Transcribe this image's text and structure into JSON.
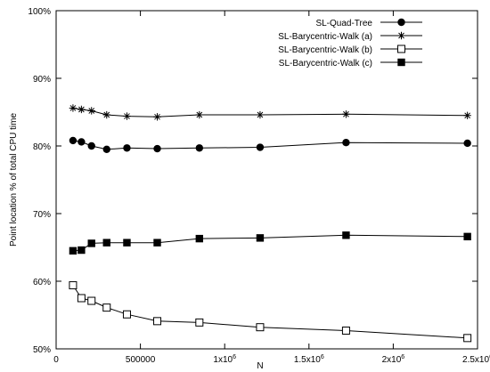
{
  "chart_data": {
    "type": "line",
    "xlabel": "N",
    "ylabel": "Point location % of total CPU time",
    "xlim": [
      0,
      2500000
    ],
    "ylim": [
      50,
      100
    ],
    "grid": false,
    "legend_position": "top-right",
    "x_ticks": [
      {
        "value": 0,
        "label": "0"
      },
      {
        "value": 500000,
        "label": "500000"
      },
      {
        "value": 1000000,
        "label": "1x10",
        "exp": "6"
      },
      {
        "value": 1500000,
        "label": "1.5x10",
        "exp": "6"
      },
      {
        "value": 2000000,
        "label": "2x10",
        "exp": "6"
      },
      {
        "value": 2500000,
        "label": "2.5x10",
        "exp": "6"
      }
    ],
    "y_ticks": [
      {
        "value": 50,
        "label": "50%"
      },
      {
        "value": 60,
        "label": "60%"
      },
      {
        "value": 70,
        "label": "70%"
      },
      {
        "value": 80,
        "label": "80%"
      },
      {
        "value": 90,
        "label": "90%"
      },
      {
        "value": 100,
        "label": "100%"
      }
    ],
    "x": [
      100000,
      150000,
      210000,
      300000,
      420000,
      600000,
      850000,
      1210000,
      1720000,
      2440000
    ],
    "series": [
      {
        "name": "SL-Quad-Tree",
        "marker": "filled-circle",
        "values": [
          80.8,
          80.6,
          80.0,
          79.5,
          79.7,
          79.6,
          79.7,
          79.8,
          80.5,
          80.4
        ]
      },
      {
        "name": "SL-Barycentric-Walk (a)",
        "marker": "star",
        "values": [
          85.6,
          85.4,
          85.2,
          84.6,
          84.4,
          84.3,
          84.6,
          84.6,
          84.7,
          84.5
        ]
      },
      {
        "name": "SL-Barycentric-Walk (b)",
        "marker": "open-square",
        "values": [
          59.4,
          57.5,
          57.1,
          56.1,
          55.1,
          54.1,
          53.9,
          53.2,
          52.7,
          51.6
        ]
      },
      {
        "name": "SL-Barycentric-Walk (c)",
        "marker": "filled-square",
        "values": [
          64.5,
          64.6,
          65.6,
          65.7,
          65.7,
          65.7,
          66.3,
          66.4,
          66.8,
          66.6
        ]
      }
    ]
  }
}
